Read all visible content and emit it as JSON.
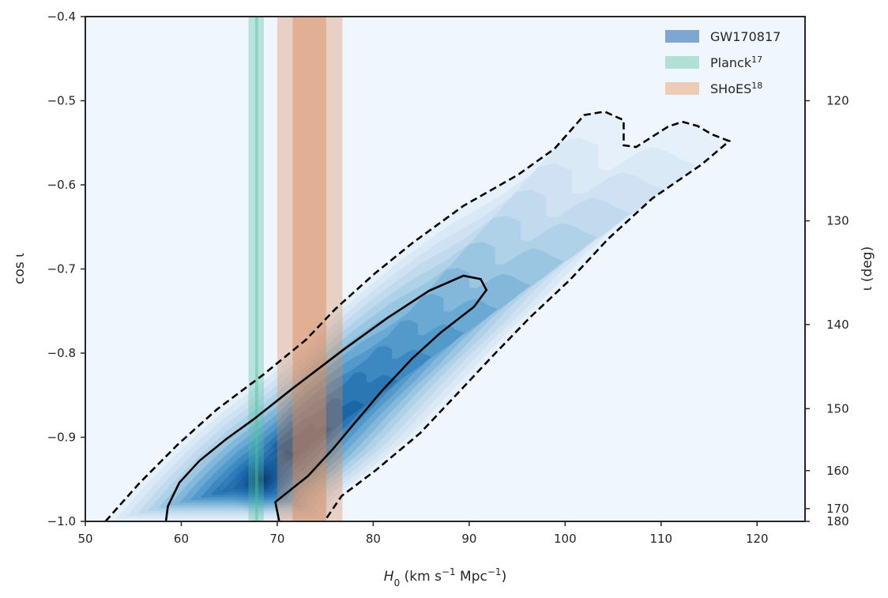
{
  "chart_data": {
    "type": "contour",
    "xlabel": {
      "prefix": "H",
      "sub": "0",
      "units": " (km s",
      "exp1": "−1",
      "mid": " Mpc",
      "exp2": "−1",
      "suffix": ")"
    },
    "ylabel": "cos ι",
    "y2label": "ι (deg)",
    "xlim": [
      50,
      125
    ],
    "ylim": [
      -1.0,
      -0.4
    ],
    "x_ticks": [
      50,
      60,
      70,
      80,
      90,
      100,
      110,
      120
    ],
    "x_tick_labels": [
      "50",
      "60",
      "70",
      "80",
      "90",
      "100",
      "110",
      "120"
    ],
    "y_ticks": [
      -0.4,
      -0.5,
      -0.6,
      -0.7,
      -0.8,
      -0.9,
      -1.0
    ],
    "y_tick_labels": [
      "−0.4",
      "−0.5",
      "−0.6",
      "−0.7",
      "−0.8",
      "−0.9",
      "−1.0"
    ],
    "y2_ticks_deg": [
      120,
      130,
      140,
      150,
      160,
      170,
      180
    ],
    "y2_tick_labels": [
      "120",
      "130",
      "140",
      "150",
      "160",
      "170",
      "180"
    ],
    "legend": {
      "placement": "top-right",
      "entries": [
        {
          "label": "GW170817",
          "sup": "",
          "color": "#7ea6d1"
        },
        {
          "label": "Planck",
          "sup": "17",
          "color": "#b2e0d5"
        },
        {
          "label": "SHoES",
          "sup": "18",
          "color": "#ecccb6"
        }
      ]
    },
    "bands": [
      {
        "name": "Planck",
        "outer": [
          67.0,
          68.6
        ],
        "inner": [
          67.7,
          68.0
        ],
        "color": "#4fc0a0"
      },
      {
        "name": "SHoES",
        "outer": [
          70.0,
          76.8
        ],
        "inner": [
          71.6,
          75.1
        ],
        "color": "#d9895a"
      }
    ],
    "contours": {
      "credible_90_dashed": [
        [
          52.1,
          -1.0
        ],
        [
          55.6,
          -0.955
        ],
        [
          59.6,
          -0.909
        ],
        [
          63.7,
          -0.867
        ],
        [
          68.5,
          -0.826
        ],
        [
          73.0,
          -0.784
        ],
        [
          76.1,
          -0.747
        ],
        [
          80.1,
          -0.706
        ],
        [
          84.1,
          -0.669
        ],
        [
          89.4,
          -0.625
        ],
        [
          95.1,
          -0.588
        ],
        [
          98.9,
          -0.557
        ],
        [
          102.0,
          -0.517
        ],
        [
          104.1,
          -0.513
        ],
        [
          106.1,
          -0.523
        ],
        [
          106.1,
          -0.553
        ],
        [
          107.4,
          -0.555
        ],
        [
          110.7,
          -0.531
        ],
        [
          112.2,
          -0.525
        ],
        [
          113.8,
          -0.53
        ],
        [
          115.3,
          -0.54
        ],
        [
          117.1,
          -0.548
        ],
        [
          114.2,
          -0.576
        ],
        [
          109.1,
          -0.616
        ],
        [
          104.5,
          -0.664
        ],
        [
          100.5,
          -0.713
        ],
        [
          96.3,
          -0.758
        ],
        [
          92.4,
          -0.804
        ],
        [
          88.7,
          -0.849
        ],
        [
          84.9,
          -0.895
        ],
        [
          80.3,
          -0.939
        ],
        [
          76.7,
          -0.97
        ],
        [
          74.9,
          -1.0
        ]
      ],
      "credible_50_solid": [
        [
          58.4,
          -1.0
        ],
        [
          58.6,
          -0.982
        ],
        [
          59.8,
          -0.954
        ],
        [
          61.9,
          -0.928
        ],
        [
          64.7,
          -0.902
        ],
        [
          67.5,
          -0.879
        ],
        [
          71.6,
          -0.842
        ],
        [
          76.9,
          -0.796
        ],
        [
          81.5,
          -0.758
        ],
        [
          85.8,
          -0.726
        ],
        [
          89.4,
          -0.708
        ],
        [
          91.2,
          -0.712
        ],
        [
          91.8,
          -0.725
        ],
        [
          90.5,
          -0.745
        ],
        [
          87.0,
          -0.776
        ],
        [
          84.1,
          -0.806
        ],
        [
          80.9,
          -0.845
        ],
        [
          78.0,
          -0.884
        ],
        [
          75.8,
          -0.914
        ],
        [
          73.2,
          -0.946
        ],
        [
          69.8,
          -0.977
        ],
        [
          70.2,
          -1.0
        ]
      ]
    }
  }
}
